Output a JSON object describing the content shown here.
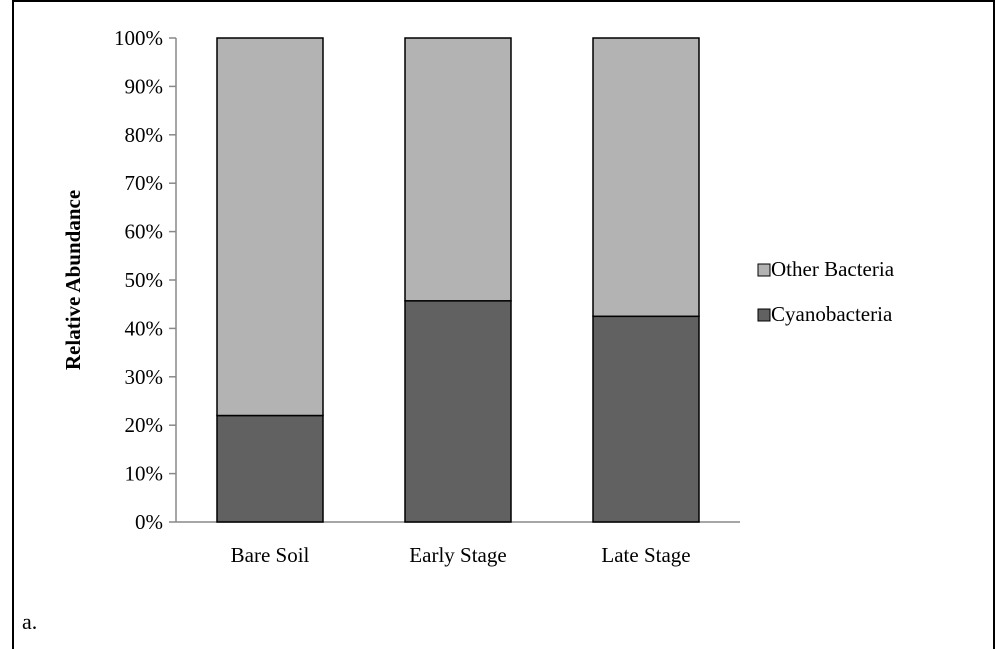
{
  "panel_label": "a.",
  "chart_data": {
    "type": "bar",
    "stacked": true,
    "categories": [
      "Bare Soil",
      "Early Stage",
      "Late Stage"
    ],
    "series": [
      {
        "name": "Cyanobacteria",
        "values": [
          22,
          45.7,
          42.5
        ],
        "color": "#616161"
      },
      {
        "name": "Other Bacteria",
        "values": [
          78,
          54.3,
          57.5
        ],
        "color": "#b3b3b3"
      }
    ],
    "ylabel": "Relative Abundance",
    "xlabel": "",
    "ylim": [
      0,
      100
    ],
    "yticks": [
      "0%",
      "10%",
      "20%",
      "30%",
      "40%",
      "50%",
      "60%",
      "70%",
      "80%",
      "90%",
      "100%"
    ],
    "grid": false,
    "legend_position": "right"
  }
}
